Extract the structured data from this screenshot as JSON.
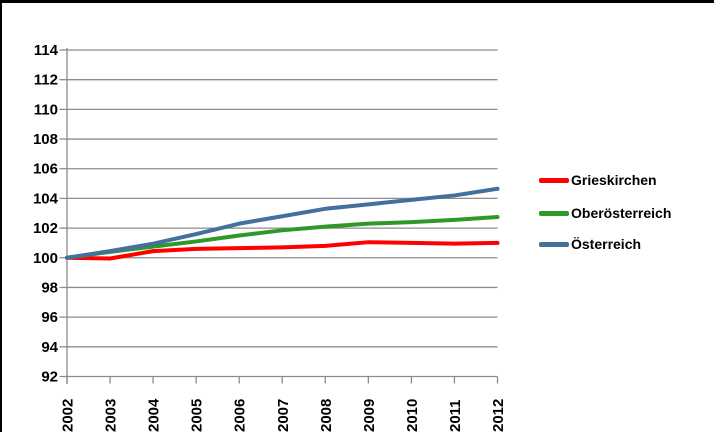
{
  "frame": {
    "background": "#FFFFFF",
    "border_color": "#000000",
    "grid_color": "#8C8C8C",
    "text_color": "#000000"
  },
  "chart_data": {
    "type": "line",
    "title": "",
    "xlabel": "",
    "ylabel": "",
    "x": [
      2002,
      2003,
      2004,
      2005,
      2006,
      2007,
      2008,
      2009,
      2010,
      2011,
      2012
    ],
    "x_tick_labels": [
      "2002",
      "2003",
      "2004",
      "2005",
      "2006",
      "2007",
      "2008",
      "2009",
      "2010",
      "2011",
      "2012"
    ],
    "y_tick_labels": [
      "92",
      "94",
      "96",
      "98",
      "100",
      "102",
      "104",
      "106",
      "108",
      "110",
      "112",
      "114"
    ],
    "ylim": [
      92,
      114
    ],
    "ytick_step": 2,
    "grid": "horizontal",
    "legend_position": "right",
    "series": [
      {
        "name": "Grieskirchen",
        "color": "#FF0000",
        "values": [
          100,
          99.95,
          100.45,
          100.6,
          100.65,
          100.7,
          100.8,
          101.05,
          101.0,
          100.95,
          101.0
        ]
      },
      {
        "name": "Oberösterreich",
        "color": "#2E9928",
        "values": [
          100,
          100.4,
          100.75,
          101.1,
          101.5,
          101.85,
          102.1,
          102.3,
          102.4,
          102.55,
          102.75
        ]
      },
      {
        "name": "Österreich",
        "color": "#44709D",
        "values": [
          100,
          100.45,
          100.95,
          101.6,
          102.3,
          102.8,
          103.3,
          103.6,
          103.9,
          104.2,
          104.65
        ]
      }
    ]
  }
}
